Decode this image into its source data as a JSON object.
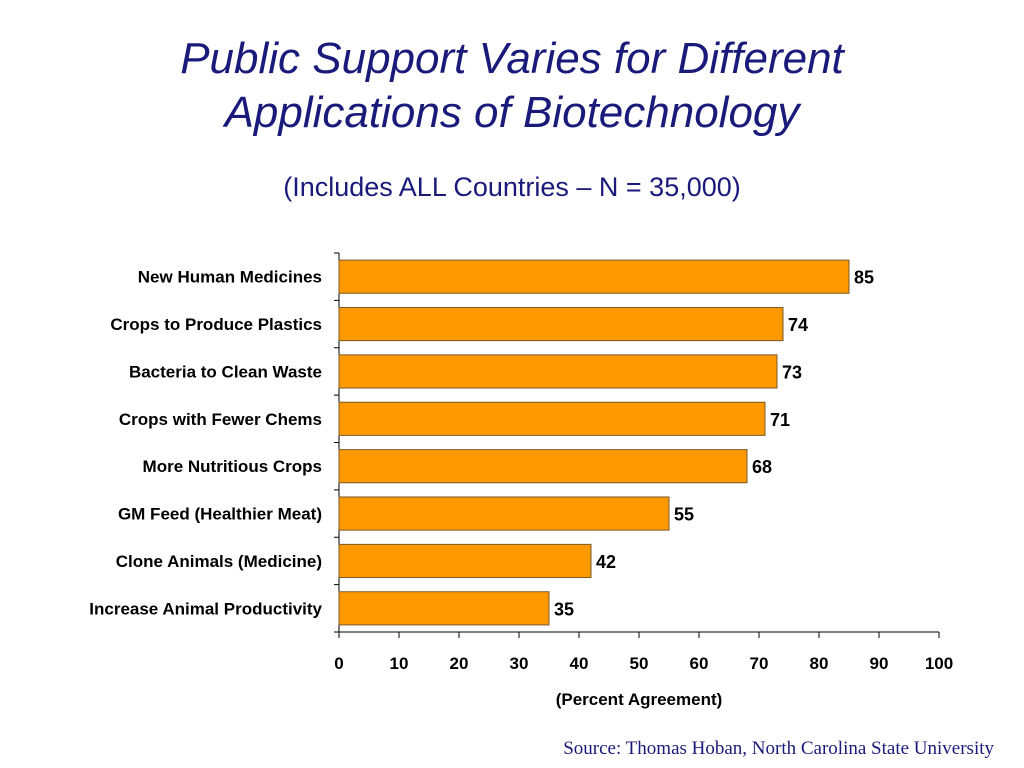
{
  "title_line1": "Public Support Varies for Different",
  "title_line2": "Applications of Biotechnology",
  "subtitle": "(Includes ALL Countries – N = 35,000)",
  "source": "Source: Thomas Hoban, North Carolina State University",
  "colors": {
    "bar_fill": "#ff9900",
    "bar_stroke": "#7a5a2a",
    "title": "#1a1a7a"
  },
  "chart_data": {
    "type": "bar",
    "orientation": "horizontal",
    "categories": [
      "New Human Medicines",
      "Crops to Produce Plastics",
      "Bacteria to Clean Waste",
      "Crops with Fewer Chems",
      "More Nutritious Crops",
      "GM Feed (Healthier Meat)",
      "Clone Animals (Medicine)",
      "Increase Animal Productivity"
    ],
    "values": [
      85,
      74,
      73,
      71,
      68,
      55,
      42,
      35
    ],
    "xlabel": "(Percent Agreement)",
    "xlim": [
      0,
      100
    ],
    "xticks": [
      0,
      10,
      20,
      30,
      40,
      50,
      60,
      70,
      80,
      90,
      100
    ],
    "grid": false,
    "legend": "none"
  }
}
